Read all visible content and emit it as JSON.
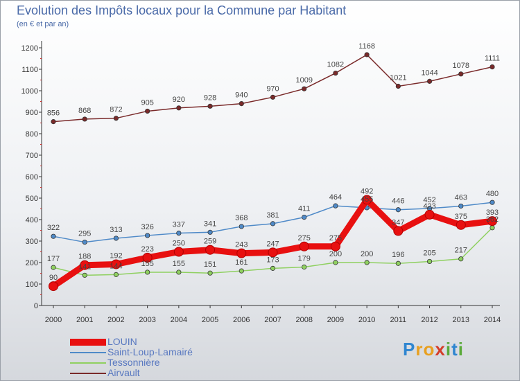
{
  "header": {
    "title": "Evolution des Impôts locaux pour la Commune par Habitant",
    "subtitle": "(en € et par an)"
  },
  "brand": {
    "letters": [
      "P",
      "r",
      "o",
      "x",
      "i",
      "t",
      "i"
    ],
    "colors": [
      "#2f86d0",
      "#e8a020",
      "#e8a020",
      "#d43d2a",
      "#5aaa3a",
      "#2f86d0",
      "#5aaa3a"
    ]
  },
  "chart_data": {
    "type": "line",
    "title": "Evolution des Impôts locaux pour la Commune par Habitant",
    "subtitle": "(en € et par an)",
    "categories": [
      "2000",
      "2001",
      "2002",
      "2003",
      "2004",
      "2005",
      "2006",
      "2007",
      "2008",
      "2009",
      "2010",
      "2011",
      "2012",
      "2013",
      "2014"
    ],
    "ylim": [
      0,
      1200
    ],
    "yticks": [
      0,
      100,
      200,
      300,
      400,
      500,
      600,
      700,
      800,
      900,
      1000,
      1100,
      1200
    ],
    "grid": false,
    "legend_position": "bottom-left",
    "series": [
      {
        "name": "Airvault",
        "color": "#7a2a2a",
        "values": [
          856,
          868,
          872,
          905,
          920,
          928,
          940,
          970,
          1009,
          1082,
          1168,
          1021,
          1044,
          1078,
          1111
        ],
        "labels": [
          "856",
          "868",
          "872",
          "905",
          "920",
          "928",
          "940",
          "970",
          "1009",
          "1082",
          "1168",
          "1021",
          "1044",
          "1078",
          "1111"
        ]
      },
      {
        "name": "Saint-Loup-Lamairé",
        "color": "#4f8ac8",
        "values": [
          322,
          295,
          313,
          326,
          337,
          341,
          368,
          381,
          411,
          464,
          455,
          446,
          452,
          463,
          480
        ],
        "labels": [
          "322",
          "295",
          "313",
          "326",
          "337",
          "341",
          "368",
          "381",
          "411",
          "464",
          "455",
          "446",
          "452",
          "463",
          "480"
        ]
      },
      {
        "name": "Tessonnière",
        "color": "#8fd060",
        "values": [
          177,
          141,
          144,
          155,
          155,
          151,
          161,
          173,
          179,
          200,
          200,
          196,
          205,
          217,
          362
        ],
        "labels": [
          "177",
          "141",
          "144",
          "155",
          "155",
          "151",
          "161",
          "173",
          "179",
          "200",
          "200",
          "196",
          "205",
          "217",
          "362"
        ]
      },
      {
        "name": "LOUIN",
        "color": "#e81010",
        "values": [
          90,
          188,
          192,
          223,
          250,
          259,
          243,
          247,
          275,
          275,
          492,
          347,
          423,
          375,
          393
        ],
        "labels": [
          "90",
          "188",
          "192",
          "223",
          "250",
          "259",
          "243",
          "247",
          "275",
          "275",
          "492",
          "347",
          "423",
          "375",
          "393"
        ]
      }
    ],
    "legend": [
      "LOUIN",
      "Saint-Loup-Lamairé",
      "Tessonnière",
      "Airvault"
    ]
  }
}
